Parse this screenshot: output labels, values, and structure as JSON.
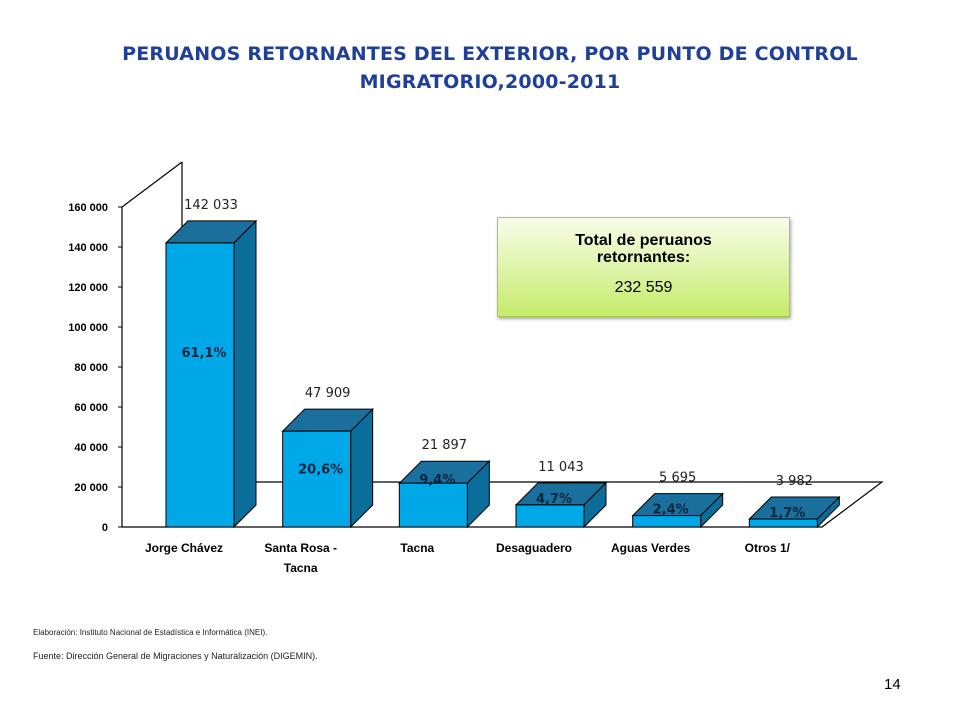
{
  "chart_data": {
    "type": "bar",
    "title": "PERUANOS RETORNANTES DEL EXTERIOR, POR PUNTO DE CONTROL MIGRATORIO,2000-2011",
    "categories": [
      "Jorge Chávez",
      "Santa Rosa - Tacna",
      "Tacna",
      "Desaguadero",
      "Aguas Verdes",
      "Otros 1/"
    ],
    "category_lines": [
      [
        "Jorge Chávez"
      ],
      [
        "Santa Rosa -",
        "Tacna"
      ],
      [
        "Tacna"
      ],
      [
        "Desaguadero"
      ],
      [
        "Aguas Verdes"
      ],
      [
        "Otros 1/"
      ]
    ],
    "values": [
      142033,
      47909,
      21897,
      11043,
      5695,
      3982
    ],
    "value_labels": [
      "142 033",
      "47 909",
      "21 897",
      "11 043",
      "5 695",
      "3 982"
    ],
    "percent_labels": [
      "61,1%",
      "20,6%",
      "9,4%",
      "4,7%",
      "2,4%",
      "1,7%"
    ],
    "ylim": [
      0,
      160000
    ],
    "yticks": [
      0,
      20000,
      40000,
      60000,
      80000,
      100000,
      120000,
      140000,
      160000
    ],
    "ytick_labels": [
      "0",
      "20 000",
      "40 000",
      "60 000",
      "80 000",
      "100 000",
      "120 000",
      "140 000",
      "160 000"
    ],
    "style": "3d-column",
    "grid": false,
    "bar_color": "#00a8e8",
    "bar_top_color": "#1a6f9c",
    "bar_side_color": "#0b6e9a"
  },
  "total_box": {
    "label": "Total de peruanos retornantes:",
    "value": "232 559"
  },
  "notes": {
    "elaboration": "Elaboración: Instituto Nacional de Estadística e Informática (INEI).",
    "source": "Fuente: Dirección General de Migraciones y Naturalización (DIGEMIN)."
  },
  "page_number": "14"
}
